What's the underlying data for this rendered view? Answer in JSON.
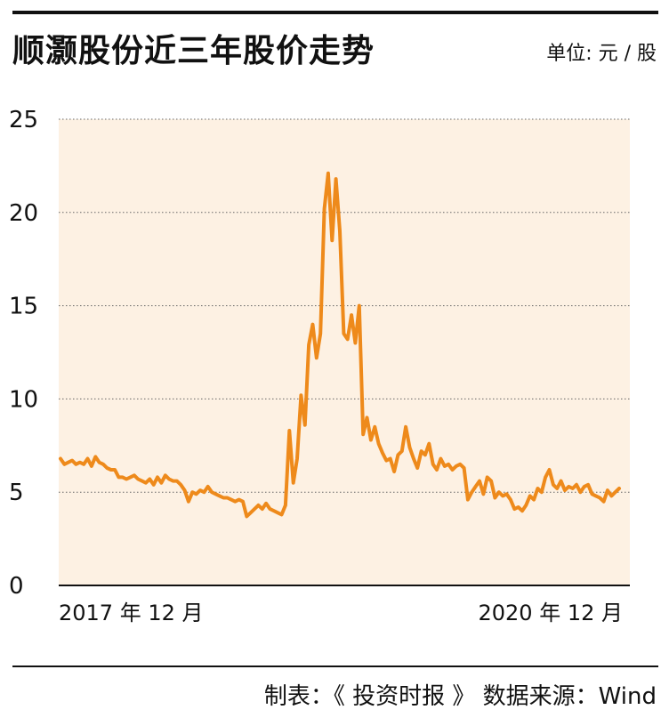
{
  "title": "顺灏股份近三年股价走势",
  "unit_label": "单位: 元 / 股",
  "footer": "制表：《 投资时报 》  数据来源：Wind",
  "colors": {
    "line": "#ee8a1b",
    "plot_bg": "#fdf1e3",
    "text": "#111111"
  },
  "chart_data": {
    "type": "line",
    "title": "顺灏股份近三年股价走势",
    "ylabel": "单位: 元 / 股",
    "ylim": [
      0,
      25
    ],
    "yticks": [
      0,
      5,
      10,
      15,
      20,
      25
    ],
    "x_tick_labels": [
      {
        "label": "2017 年 12 月",
        "position": "start"
      },
      {
        "label": "2020 年 12 月",
        "position": "end"
      }
    ],
    "grid": "horizontal dotted",
    "series": [
      {
        "values": [
          6.8,
          6.5,
          6.6,
          6.7,
          6.5,
          6.6,
          6.5,
          6.8,
          6.4,
          6.9,
          6.6,
          6.5,
          6.3,
          6.2,
          6.2,
          5.8,
          5.8,
          5.7,
          5.8,
          5.9,
          5.7,
          5.6,
          5.5,
          5.7,
          5.4,
          5.8,
          5.5,
          5.9,
          5.7,
          5.6,
          5.6,
          5.4,
          5.1,
          4.5,
          5.0,
          4.9,
          5.1,
          5.0,
          5.3,
          5.0,
          4.9,
          4.8,
          4.7,
          4.7,
          4.6,
          4.5,
          4.6,
          4.5,
          3.7,
          3.9,
          4.1,
          4.3,
          4.1,
          4.4,
          4.1,
          4.0,
          3.9,
          3.8,
          4.3,
          8.3,
          5.5,
          6.8,
          10.2,
          8.6,
          12.9,
          14.0,
          12.2,
          13.5,
          20.2,
          22.1,
          18.5,
          21.8,
          19.0,
          13.5,
          13.2,
          14.5,
          13.0,
          15.0,
          8.1,
          9.0,
          7.8,
          8.5,
          7.6,
          7.1,
          6.7,
          6.8,
          6.1,
          7.0,
          7.2,
          8.5,
          7.4,
          6.8,
          6.3,
          7.2,
          7.0,
          7.6,
          6.5,
          6.2,
          6.8,
          6.4,
          6.5,
          6.2,
          6.4,
          6.5,
          6.3,
          4.6,
          5.0,
          5.3,
          5.6,
          4.9,
          5.8,
          5.6,
          4.7,
          5.0,
          4.8,
          4.9,
          4.6,
          4.1,
          4.2,
          4.0,
          4.3,
          4.8,
          4.6,
          5.2,
          5.0,
          5.8,
          6.2,
          5.4,
          5.2,
          5.6,
          5.1,
          5.3,
          5.2,
          5.4,
          5.0,
          5.3,
          5.4,
          4.9,
          4.8,
          4.7,
          4.5,
          5.1,
          4.8,
          5.0,
          5.2
        ]
      }
    ]
  }
}
